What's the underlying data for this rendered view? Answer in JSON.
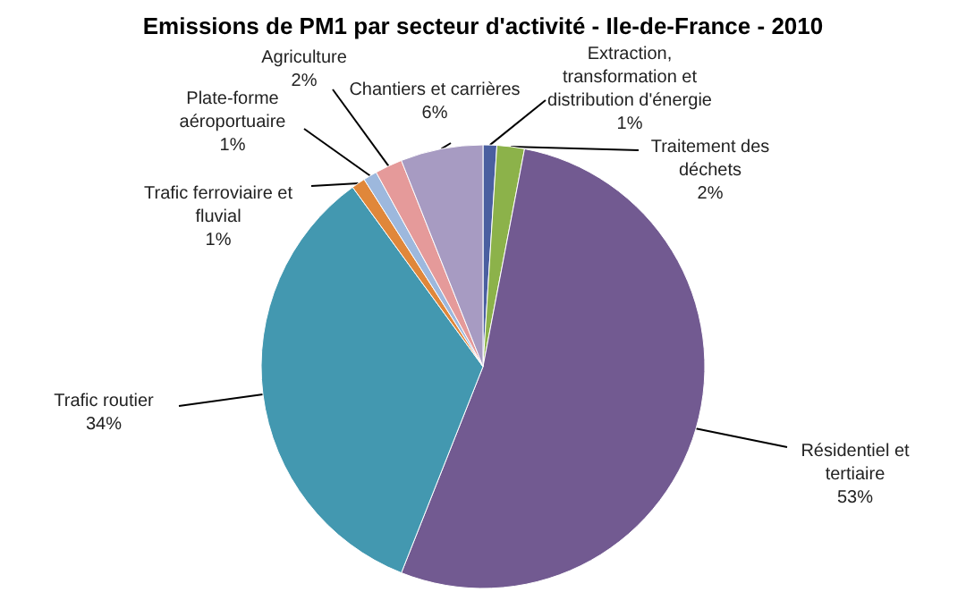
{
  "chart_data": {
    "type": "pie",
    "title": "Emissions de PM1 par secteur d'activité - Ile-de-France - 2010",
    "categories": [
      "Extraction, transformation et distribution d'énergie",
      "Traitement des déchets",
      "Résidentiel et tertiaire",
      "Trafic routier",
      "Trafic ferroviaire et fluvial",
      "Plate-forme aéroportuaire",
      "Agriculture",
      "Chantiers et carrières"
    ],
    "values": [
      1,
      2,
      53,
      34,
      1,
      1,
      2,
      6
    ],
    "value_labels": [
      "1%",
      "2%",
      "53%",
      "34%",
      "1%",
      "1%",
      "2%",
      "6%"
    ],
    "colors": [
      "#4a5fa0",
      "#8cb24a",
      "#725a91",
      "#4398b0",
      "#e0873a",
      "#9db8dd",
      "#e59a9a",
      "#a79bc2"
    ]
  }
}
